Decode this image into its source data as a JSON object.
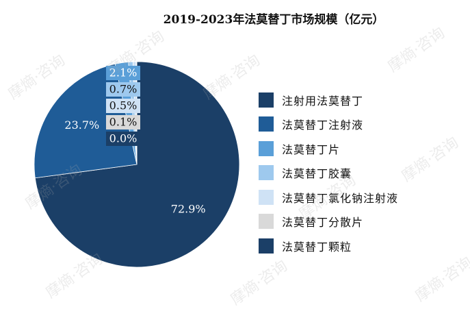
{
  "watermark": "摩熵·咨询",
  "chart_data": {
    "type": "pie",
    "title": "2019-2023年法莫替丁市场规模（亿元）",
    "legend_position": "right",
    "slices": [
      {
        "label": "注射用法莫替丁",
        "value": 72.9,
        "display": "72.9%",
        "color": "#1b3f67"
      },
      {
        "label": "法莫替丁注射液",
        "value": 23.7,
        "display": "23.7%",
        "color": "#1f5c97"
      },
      {
        "label": "法莫替丁片",
        "value": 2.1,
        "display": "2.1%",
        "color": "#5a9fd8"
      },
      {
        "label": "法莫替丁胶囊",
        "value": 0.7,
        "display": "0.7%",
        "color": "#9ec9ee"
      },
      {
        "label": "法莫替丁氯化钠注射液",
        "value": 0.5,
        "display": "0.5%",
        "color": "#cfe2f5"
      },
      {
        "label": "法莫替丁分散片",
        "value": 0.1,
        "display": "0.1%",
        "color": "#d9d9d9"
      },
      {
        "label": "法莫替丁颗粒",
        "value": 0.0,
        "display": "0.0%",
        "color": "#1b3f67"
      }
    ]
  }
}
